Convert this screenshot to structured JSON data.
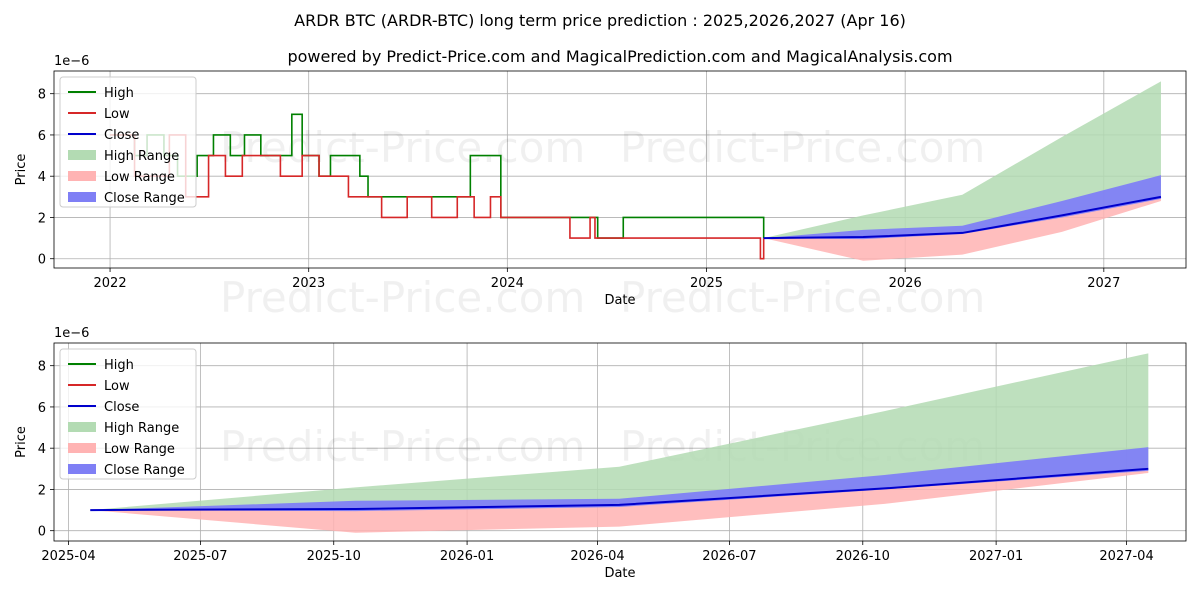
{
  "title_line1": "ARDR BTC (ARDR-BTC) long term price prediction : 2025,2026,2027 (Apr 16)",
  "title_line2": "powered by Predict-Price.com and MagicalPrediction.com and MagicalAnalysis.com",
  "watermark": "Predict-Price.com",
  "colors": {
    "high": "#008000",
    "low": "#d62728",
    "close": "#0000cc",
    "high_range": "#b3dbb3",
    "low_range": "#ffb3b3",
    "close_range": "#7f7ff5"
  },
  "legend": [
    "High",
    "Low",
    "Close",
    "High Range",
    "Low Range",
    "Close Range"
  ],
  "chart_data": [
    {
      "type": "line",
      "xlabel": "Date",
      "ylabel": "Price",
      "y_scale_label": "1e−6",
      "x_ticks": [
        "2022",
        "2023",
        "2024",
        "2025",
        "2026",
        "2027"
      ],
      "y_ticks": [
        "0",
        "2",
        "4",
        "6",
        "8"
      ],
      "ylim": [
        -0.45,
        9.1
      ],
      "xlim": [
        "2021-09-20",
        "2027-06-01"
      ],
      "grid": true,
      "legend_position": "upper-left",
      "history_high": [
        [
          "2022-01-01",
          6.0
        ],
        [
          "2022-02-15",
          5.0
        ],
        [
          "2022-03-10",
          6.0
        ],
        [
          "2022-04-10",
          5.0
        ],
        [
          "2022-05-05",
          4.0
        ],
        [
          "2022-06-10",
          5.0
        ],
        [
          "2022-07-10",
          6.0
        ],
        [
          "2022-08-10",
          5.0
        ],
        [
          "2022-09-05",
          6.0
        ],
        [
          "2022-10-05",
          5.0
        ],
        [
          "2022-11-10",
          5.0
        ],
        [
          "2022-12-01",
          7.0
        ],
        [
          "2022-12-20",
          5.0
        ],
        [
          "2023-01-20",
          4.0
        ],
        [
          "2023-02-10",
          5.0
        ],
        [
          "2023-03-01",
          5.0
        ],
        [
          "2023-04-05",
          4.0
        ],
        [
          "2023-04-20",
          3.0
        ],
        [
          "2023-06-01",
          3.0
        ],
        [
          "2023-07-10",
          3.0
        ],
        [
          "2023-08-10",
          3.0
        ],
        [
          "2023-09-10",
          3.0
        ],
        [
          "2023-10-25",
          5.0
        ],
        [
          "2023-11-25",
          5.0
        ],
        [
          "2023-12-20",
          2.0
        ],
        [
          "2024-03-01",
          2.0
        ],
        [
          "2024-05-28",
          2.0
        ],
        [
          "2024-06-15",
          1.0
        ],
        [
          "2024-08-01",
          2.0
        ],
        [
          "2024-09-15",
          2.0
        ],
        [
          "2024-10-10",
          2.0
        ],
        [
          "2025-04-16",
          1.0
        ]
      ],
      "history_low": [
        [
          "2022-01-01",
          6.0
        ],
        [
          "2022-02-15",
          4.0
        ],
        [
          "2022-04-20",
          6.0
        ],
        [
          "2022-05-20",
          3.0
        ],
        [
          "2022-07-01",
          5.0
        ],
        [
          "2022-08-01",
          4.0
        ],
        [
          "2022-09-01",
          5.0
        ],
        [
          "2022-11-10",
          4.0
        ],
        [
          "2022-12-20",
          5.0
        ],
        [
          "2023-01-20",
          4.0
        ],
        [
          "2023-03-15",
          3.0
        ],
        [
          "2023-05-15",
          2.0
        ],
        [
          "2023-07-01",
          3.0
        ],
        [
          "2023-08-15",
          2.0
        ],
        [
          "2023-10-01",
          3.0
        ],
        [
          "2023-11-01",
          2.0
        ],
        [
          "2023-12-01",
          3.0
        ],
        [
          "2023-12-20",
          2.0
        ],
        [
          "2024-04-25",
          1.0
        ],
        [
          "2024-06-01",
          2.0
        ],
        [
          "2024-06-10",
          1.0
        ],
        [
          "2025-04-10",
          0.0
        ],
        [
          "2025-04-16",
          1.0
        ]
      ],
      "forecast": {
        "dates": [
          "2025-04-16",
          "2025-10-16",
          "2026-04-16",
          "2026-10-16",
          "2027-04-16"
        ],
        "high_upper": [
          1.0,
          2.1,
          3.1,
          5.9,
          8.6
        ],
        "low_lower": [
          1.0,
          -0.1,
          0.2,
          1.3,
          2.8
        ],
        "close_upper": [
          1.0,
          1.4,
          1.6,
          2.8,
          4.05
        ],
        "close_lower": [
          1.0,
          0.95,
          1.2,
          2.0,
          2.9
        ],
        "close": [
          1.0,
          1.05,
          1.25,
          2.1,
          3.0
        ]
      }
    },
    {
      "type": "line",
      "xlabel": "Date",
      "ylabel": "Price",
      "y_scale_label": "1e−6",
      "x_ticks": [
        "2025-04",
        "2025-07",
        "2025-10",
        "2026-01",
        "2026-04",
        "2026-07",
        "2026-10",
        "2027-01",
        "2027-04"
      ],
      "y_ticks": [
        "0",
        "2",
        "4",
        "6",
        "8"
      ],
      "ylim": [
        -0.5,
        9.1
      ],
      "xlim": [
        "2025-03-22",
        "2027-05-12"
      ],
      "grid": true,
      "legend_position": "upper-left",
      "forecast": {
        "dates": [
          "2025-04-16",
          "2025-10-16",
          "2026-04-16",
          "2026-10-16",
          "2027-04-16"
        ],
        "high_upper": [
          1.0,
          2.1,
          3.1,
          5.8,
          8.6
        ],
        "low_lower": [
          1.0,
          -0.1,
          0.2,
          1.3,
          2.8
        ],
        "close_upper": [
          1.0,
          1.45,
          1.55,
          2.7,
          4.05
        ],
        "close_lower": [
          1.0,
          0.95,
          1.15,
          2.0,
          2.9
        ],
        "close": [
          1.0,
          1.05,
          1.25,
          2.05,
          3.0
        ]
      }
    }
  ]
}
